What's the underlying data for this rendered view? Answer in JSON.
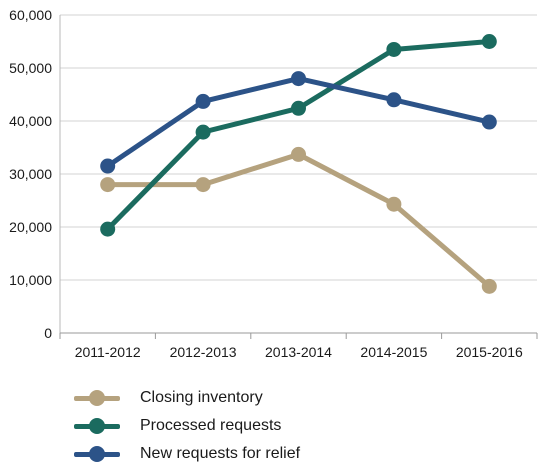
{
  "chart_data": {
    "type": "line",
    "categories": [
      "2011-2012",
      "2012-2013",
      "2013-2014",
      "2014-2015",
      "2015-2016"
    ],
    "ylim": [
      0,
      60000
    ],
    "yticks": [
      "0",
      "10,000",
      "20,000",
      "30,000",
      "40,000",
      "50,000",
      "60,000"
    ],
    "ytick_values": [
      0,
      10000,
      20000,
      30000,
      40000,
      50000,
      60000
    ],
    "grid": true,
    "legend_position": "bottom-left",
    "series": [
      {
        "name": "Closing inventory",
        "color": "#b5a27e",
        "values": [
          28000,
          28000,
          33700,
          24300,
          8800
        ]
      },
      {
        "name": "Processed requests",
        "color": "#1b6b5f",
        "values": [
          19600,
          37900,
          42400,
          53500,
          55000
        ]
      },
      {
        "name": "New requests for relief",
        "color": "#2c5388",
        "values": [
          31500,
          43700,
          48000,
          44000,
          39800
        ]
      }
    ]
  }
}
